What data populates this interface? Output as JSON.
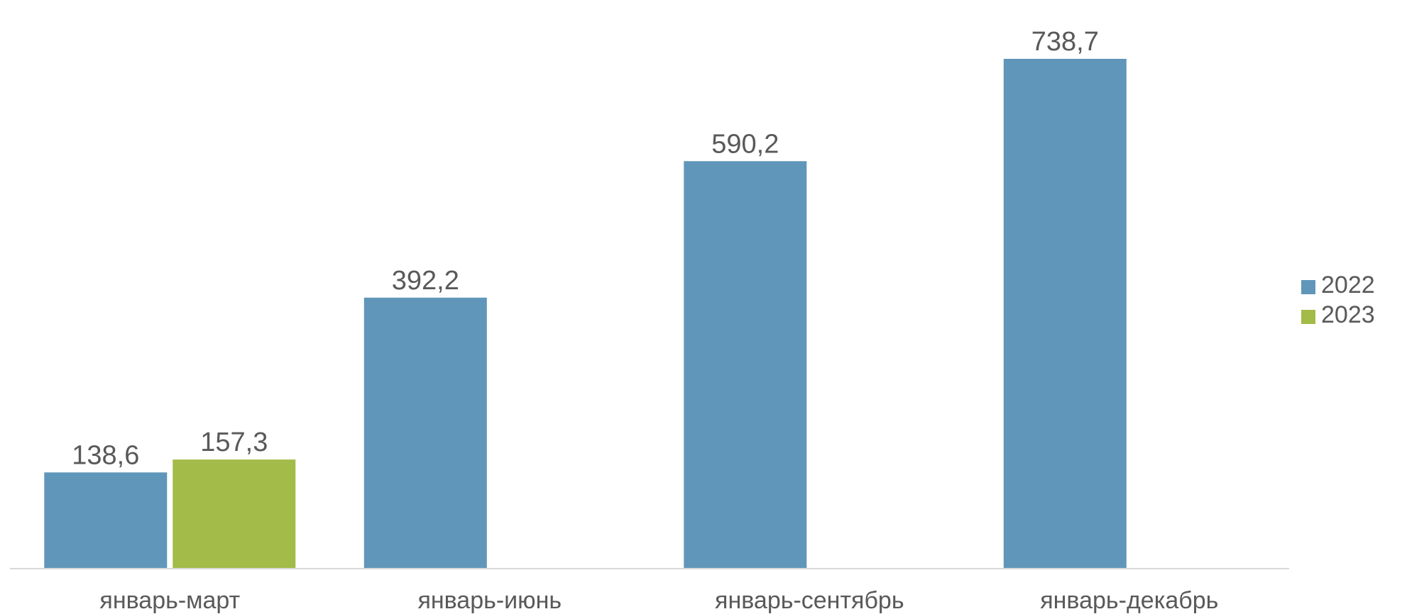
{
  "chart_data": {
    "type": "bar",
    "categories": [
      "январь-март",
      "январь-июнь",
      "январь-сентябрь",
      "январь-декабрь"
    ],
    "series": [
      {
        "name": "2022",
        "color": "#6096B9",
        "values": [
          138.6,
          392.2,
          590.2,
          738.7
        ],
        "labels": [
          "138,6",
          "392,2",
          "590,2",
          "738,7"
        ]
      },
      {
        "name": "2023",
        "color": "#A3BB48",
        "values": [
          157.3,
          null,
          null,
          null
        ],
        "labels": [
          "157,3",
          "",
          "",
          ""
        ]
      }
    ],
    "ylim": [
      0,
      738.7
    ],
    "grid": false,
    "legend_position": "right"
  }
}
